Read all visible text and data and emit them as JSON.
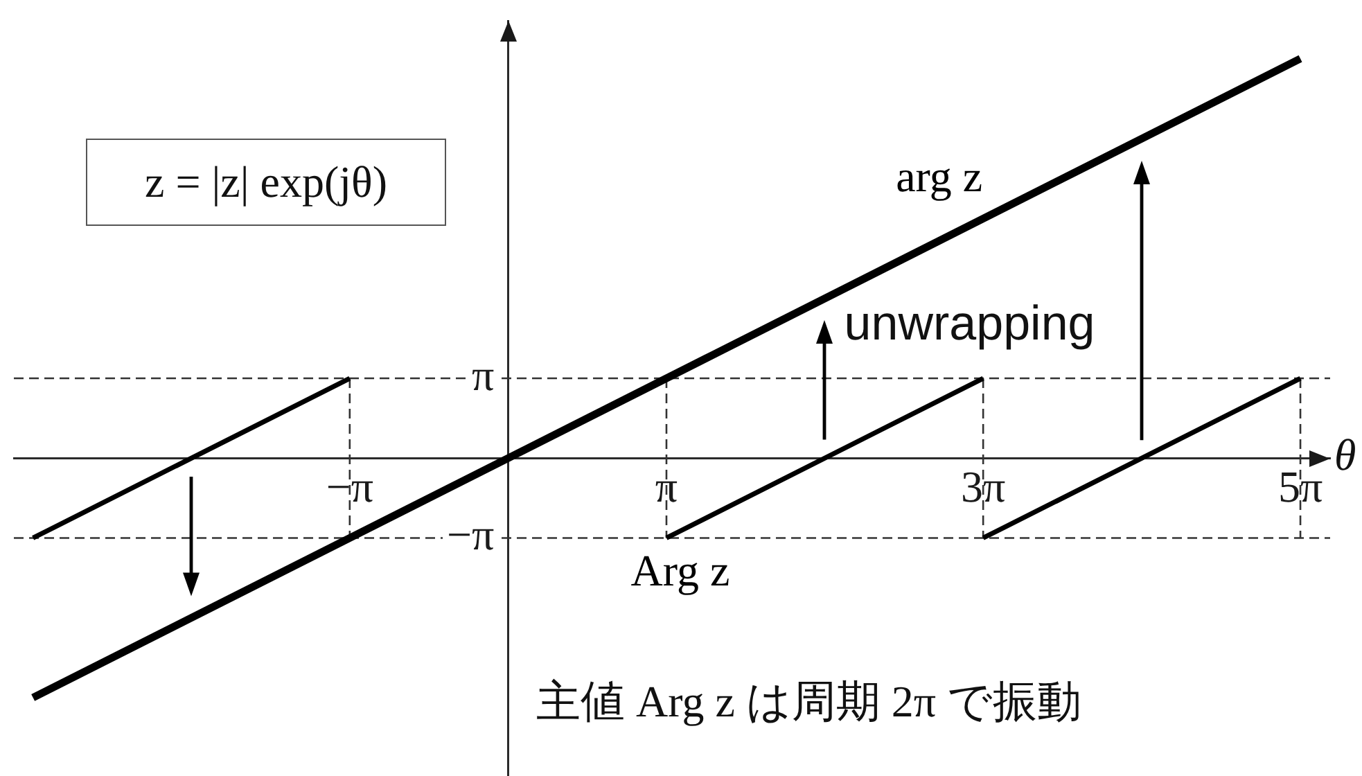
{
  "chart_data": {
    "type": "line",
    "annotations": [
      "z = |z| exp(jθ)",
      "unwrapping",
      "主値 Arg z は周期 2π で振動"
    ],
    "xlabel": "θ",
    "series": [
      {
        "name": "arg z",
        "color": "#000000",
        "x": [
          -9.42,
          15.71
        ],
        "values": [
          -9.42,
          15.71
        ]
      },
      {
        "name": "Arg z",
        "color": "#000000",
        "x": [
          -9.42,
          -3.14,
          null,
          3.14,
          9.42,
          null,
          9.42,
          15.71
        ],
        "values": [
          -3.14,
          3.14,
          null,
          -3.14,
          3.14,
          null,
          -3.14,
          3.14
        ]
      },
      {
        "color": "#333333",
        "line_style": "dashed",
        "x": [
          -3.14,
          -3.14,
          null,
          3.14,
          3.14,
          null,
          9.42,
          9.42,
          null,
          15.71,
          15.71
        ],
        "values": [
          3.14,
          -3.14,
          null,
          3.14,
          -3.14,
          null,
          3.14,
          -3.14,
          null,
          3.14,
          -3.14
        ]
      }
    ],
    "xlim": [
      -9.8,
      16.3
    ],
    "ylim": [
      -12.5,
      17.2
    ],
    "xticks": [
      {
        "value": -3.14,
        "label": "−π"
      },
      {
        "value": 3.14,
        "label": "π"
      },
      {
        "value": 9.42,
        "label": "3π"
      },
      {
        "value": 15.71,
        "label": "5π"
      }
    ],
    "yticks": [
      {
        "value": 3.14,
        "label": "π"
      },
      {
        "value": -3.14,
        "label": "−π"
      }
    ],
    "ref_lines": [
      {
        "axis": "y",
        "value": 3.14,
        "color": "#333333",
        "line_style": "dashed"
      },
      {
        "axis": "y",
        "value": -3.14,
        "color": "#333333",
        "line_style": "dashed"
      }
    ],
    "grid": false,
    "legend": false,
    "marker": "none",
    "line_style": "solid"
  }
}
